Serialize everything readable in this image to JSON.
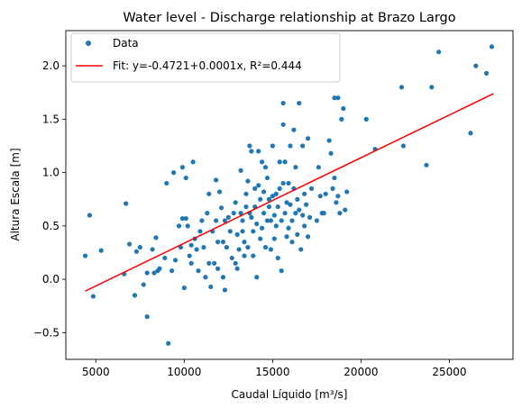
{
  "chart_data": {
    "type": "scatter",
    "title": "Water level - Discharge relationship at Brazo Largo",
    "xlabel": "Caudal Líquido [m³/s]",
    "ylabel": "Altura Escala [m]",
    "xlim": [
      3300,
      28600
    ],
    "ylim": [
      -0.75,
      2.33
    ],
    "x_ticks": [
      5000,
      10000,
      15000,
      20000,
      25000
    ],
    "x_tick_labels": [
      "5000",
      "10000",
      "15000",
      "20000",
      "25000"
    ],
    "y_ticks": [
      -0.5,
      0.0,
      0.5,
      1.0,
      1.5,
      2.0
    ],
    "y_tick_labels": [
      "−0.5",
      "0.0",
      "0.5",
      "1.0",
      "1.5",
      "2.0"
    ],
    "grid": false,
    "legend_position": "top-left",
    "colors": {
      "data": "#1f77b4",
      "fit": "#ff0000"
    },
    "series": [
      {
        "name": "Data",
        "kind": "scatter",
        "legend_label": "Data",
        "points": [
          [
            4400,
            0.22
          ],
          [
            4650,
            0.6
          ],
          [
            4850,
            -0.16
          ],
          [
            5300,
            0.27
          ],
          [
            6600,
            0.05
          ],
          [
            6700,
            0.71
          ],
          [
            6900,
            0.33
          ],
          [
            7200,
            -0.15
          ],
          [
            7300,
            0.26
          ],
          [
            7500,
            0.3
          ],
          [
            7700,
            -0.05
          ],
          [
            7900,
            0.06
          ],
          [
            7900,
            -0.35
          ],
          [
            8200,
            0.28
          ],
          [
            8300,
            0.06
          ],
          [
            8400,
            0.39
          ],
          [
            8500,
            0.08
          ],
          [
            8600,
            0.1
          ],
          [
            8900,
            0.2
          ],
          [
            9000,
            0.9
          ],
          [
            9100,
            -0.6
          ],
          [
            9300,
            0.08
          ],
          [
            9400,
            1.0
          ],
          [
            9500,
            0.18
          ],
          [
            9700,
            0.5
          ],
          [
            9800,
            0.3
          ],
          [
            9900,
            0.57
          ],
          [
            9900,
            1.05
          ],
          [
            10000,
            -0.08
          ],
          [
            10100,
            0.57
          ],
          [
            10100,
            0.95
          ],
          [
            10200,
            0.5
          ],
          [
            10300,
            0.22
          ],
          [
            10400,
            0.15
          ],
          [
            10400,
            0.32
          ],
          [
            10500,
            1.1
          ],
          [
            10600,
            0.38
          ],
          [
            10700,
            0.28
          ],
          [
            10800,
            0.08
          ],
          [
            10900,
            0.45
          ],
          [
            11000,
            0.55
          ],
          [
            11100,
            0.3
          ],
          [
            11200,
            0.02
          ],
          [
            11300,
            0.62
          ],
          [
            11400,
            0.8
          ],
          [
            11400,
            0.15
          ],
          [
            11500,
            -0.07
          ],
          [
            11600,
            0.45
          ],
          [
            11700,
            0.15
          ],
          [
            11800,
            0.93
          ],
          [
            11800,
            0.55
          ],
          [
            11900,
            0.35
          ],
          [
            11900,
            0.1
          ],
          [
            12000,
            0.82
          ],
          [
            12100,
            0.67
          ],
          [
            12200,
            0.35
          ],
          [
            12200,
            0.02
          ],
          [
            12300,
            0.55
          ],
          [
            12300,
            -0.1
          ],
          [
            12400,
            0.3
          ],
          [
            12500,
            0.58
          ],
          [
            12600,
            0.45
          ],
          [
            12700,
            0.2
          ],
          [
            12800,
            0.62
          ],
          [
            12900,
            0.72
          ],
          [
            12900,
            0.15
          ],
          [
            13000,
            0.42
          ],
          [
            13000,
            0.1
          ],
          [
            13100,
            0.28
          ],
          [
            13200,
            0.62
          ],
          [
            13200,
            1.02
          ],
          [
            13300,
            0.55
          ],
          [
            13300,
            0.45
          ],
          [
            13400,
            0.35
          ],
          [
            13400,
            0.22
          ],
          [
            13500,
            0.8
          ],
          [
            13500,
            0.68
          ],
          [
            13600,
            0.92
          ],
          [
            13600,
            0.3
          ],
          [
            13700,
            0.62
          ],
          [
            13700,
            1.25
          ],
          [
            13800,
            1.2
          ],
          [
            13800,
            0.58
          ],
          [
            13900,
            0.45
          ],
          [
            13900,
            0.22
          ],
          [
            14000,
            0.68
          ],
          [
            14000,
            0.85
          ],
          [
            14100,
            0.52
          ],
          [
            14100,
            0.02
          ],
          [
            14200,
            0.88
          ],
          [
            14200,
            1.2
          ],
          [
            14300,
            0.75
          ],
          [
            14300,
            0.38
          ],
          [
            14400,
            0.48
          ],
          [
            14400,
            1.1
          ],
          [
            14500,
            0.82
          ],
          [
            14500,
            0.62
          ],
          [
            14600,
            0.3
          ],
          [
            14600,
            1.05
          ],
          [
            14700,
            0.55
          ],
          [
            14700,
            0.95
          ],
          [
            14800,
            0.75
          ],
          [
            14800,
            0.68
          ],
          [
            14900,
            0.55
          ],
          [
            14900,
            0.28
          ],
          [
            15000,
            0.78
          ],
          [
            15000,
            1.25
          ],
          [
            15100,
            0.6
          ],
          [
            15100,
            0.38
          ],
          [
            15200,
            0.8
          ],
          [
            15200,
            0.5
          ],
          [
            15300,
            0.68
          ],
          [
            15300,
            0.2
          ],
          [
            15400,
            1.1
          ],
          [
            15400,
            0.85
          ],
          [
            15500,
            0.55
          ],
          [
            15500,
            0.08
          ],
          [
            15600,
            0.9
          ],
          [
            15600,
            1.65
          ],
          [
            15600,
            1.45
          ],
          [
            15700,
            0.62
          ],
          [
            15700,
            1.1
          ],
          [
            15800,
            0.4
          ],
          [
            15800,
            0.72
          ],
          [
            15900,
            0.9
          ],
          [
            15900,
            0.48
          ],
          [
            16000,
            0.7
          ],
          [
            16000,
            1.25
          ],
          [
            16100,
            0.55
          ],
          [
            16100,
            0.35
          ],
          [
            16200,
            0.85
          ],
          [
            16200,
            1.4
          ],
          [
            16300,
            0.62
          ],
          [
            16300,
            1.05
          ],
          [
            16400,
            0.42
          ],
          [
            16400,
            0.75
          ],
          [
            16500,
            0.65
          ],
          [
            16500,
            1.65
          ],
          [
            16600,
            0.28
          ],
          [
            16700,
            0.6
          ],
          [
            16700,
            1.25
          ],
          [
            16800,
            0.8
          ],
          [
            16800,
            0.5
          ],
          [
            16900,
            0.7
          ],
          [
            17000,
            1.32
          ],
          [
            17000,
            0.4
          ],
          [
            17100,
            0.58
          ],
          [
            17200,
            0.85
          ],
          [
            17500,
            0.55
          ],
          [
            17600,
            1.05
          ],
          [
            17700,
            0.78
          ],
          [
            17800,
            0.62
          ],
          [
            17900,
            0.62
          ],
          [
            18000,
            0.8
          ],
          [
            18200,
            1.3
          ],
          [
            18300,
            1.18
          ],
          [
            18400,
            0.85
          ],
          [
            18500,
            1.7
          ],
          [
            18500,
            0.95
          ],
          [
            18600,
            0.72
          ],
          [
            18700,
            1.7
          ],
          [
            18700,
            0.78
          ],
          [
            18800,
            0.62
          ],
          [
            18900,
            1.5
          ],
          [
            19000,
            1.6
          ],
          [
            19100,
            0.65
          ],
          [
            19200,
            0.82
          ],
          [
            20300,
            1.5
          ],
          [
            20800,
            1.22
          ],
          [
            22300,
            1.8
          ],
          [
            22400,
            1.25
          ],
          [
            23700,
            1.07
          ],
          [
            24000,
            1.8
          ],
          [
            24400,
            2.13
          ],
          [
            26200,
            1.37
          ],
          [
            26500,
            2.0
          ],
          [
            27100,
            1.93
          ],
          [
            27400,
            2.18
          ]
        ]
      },
      {
        "name": "Fit",
        "kind": "line",
        "legend_label": "Fit: y=-0.4721+0.0001x, R²=0.444",
        "intercept": -0.4721,
        "slope_display": 0.0001,
        "x_range": [
          4400,
          27500
        ],
        "y_at_range": [
          -0.11,
          1.74
        ]
      }
    ]
  }
}
